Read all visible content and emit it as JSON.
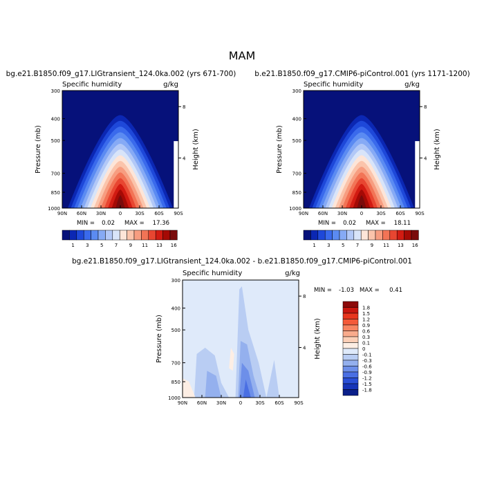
{
  "page_title": "MAM",
  "chart_data": [
    {
      "type": "heatmap",
      "title": "bg.e21.B1850.f09_g17.LIGtransient_124.0ka.002 (yrs 671-700)",
      "subtitle_left": "Specific humidity",
      "subtitle_right": "g/kg",
      "xlabel": "",
      "ylabel": "Pressure (mb)",
      "ylabel_right": "Height (km)",
      "x_ticks": [
        "90N",
        "60N",
        "30N",
        "0",
        "30S",
        "60S",
        "90S"
      ],
      "x_tick_values": [
        90,
        60,
        30,
        0,
        -30,
        -60,
        -90
      ],
      "y_ticks": [
        "300",
        "400",
        "500",
        "700",
        "850",
        "1000"
      ],
      "y_tick_values": [
        300,
        400,
        500,
        700,
        850,
        1000
      ],
      "y_log_scale": true,
      "y_right_ticks": [
        "8",
        "4"
      ],
      "y_right_tick_values": [
        8,
        4
      ],
      "min_label": "MIN =",
      "min_value": "0.02",
      "max_label": "MAX =",
      "max_value": "17.36",
      "peak_value": 17.36,
      "colorbar": {
        "orientation": "horizontal",
        "labels": [
          "1",
          "3",
          "5",
          "7",
          "9",
          "11",
          "13",
          "16"
        ],
        "colors": [
          "#06117a",
          "#0b27b3",
          "#1e48d9",
          "#3a6aec",
          "#5b8bf2",
          "#86aaf5",
          "#b2c8f7",
          "#d8e4f9",
          "#fde5d8",
          "#fbc4ab",
          "#f79d80",
          "#f27456",
          "#e84631",
          "#d21b12",
          "#a50a05",
          "#7a0b0b"
        ]
      }
    },
    {
      "type": "heatmap",
      "title": "b.e21.B1850.f09_g17.CMIP6-piControl.001 (yrs 1171-1200)",
      "subtitle_left": "Specific humidity",
      "subtitle_right": "g/kg",
      "xlabel": "",
      "ylabel": "Pressure (mb)",
      "ylabel_right": "Height (km)",
      "x_ticks": [
        "90N",
        "60N",
        "30N",
        "0",
        "30S",
        "60S",
        "90S"
      ],
      "x_tick_values": [
        90,
        60,
        30,
        0,
        -30,
        -60,
        -90
      ],
      "y_ticks": [
        "300",
        "400",
        "500",
        "700",
        "850",
        "1000"
      ],
      "y_tick_values": [
        300,
        400,
        500,
        700,
        850,
        1000
      ],
      "y_log_scale": true,
      "y_right_ticks": [
        "8",
        "4"
      ],
      "y_right_tick_values": [
        8,
        4
      ],
      "min_label": "MIN =",
      "min_value": "0.02",
      "max_label": "MAX =",
      "max_value": "18.11",
      "peak_value": 18.11,
      "colorbar": {
        "orientation": "horizontal",
        "labels": [
          "1",
          "3",
          "5",
          "7",
          "9",
          "11",
          "13",
          "16"
        ],
        "colors": [
          "#06117a",
          "#0b27b3",
          "#1e48d9",
          "#3a6aec",
          "#5b8bf2",
          "#86aaf5",
          "#b2c8f7",
          "#d8e4f9",
          "#fde5d8",
          "#fbc4ab",
          "#f79d80",
          "#f27456",
          "#e84631",
          "#d21b12",
          "#a50a05",
          "#7a0b0b"
        ]
      }
    },
    {
      "type": "heatmap",
      "title": "bg.e21.B1850.f09_g17.LIGtransient_124.0ka.002 - b.e21.B1850.f09_g17.CMIP6-piControl.001",
      "subtitle_left": "Specific humidity",
      "subtitle_right": "g/kg",
      "xlabel": "",
      "ylabel": "Pressure (mb)",
      "ylabel_right": "Height (km)",
      "x_ticks": [
        "90N",
        "60N",
        "30N",
        "0",
        "30S",
        "60S",
        "90S"
      ],
      "x_tick_values": [
        90,
        60,
        30,
        0,
        -30,
        -60,
        -90
      ],
      "y_ticks": [
        "300",
        "400",
        "500",
        "700",
        "850",
        "1000"
      ],
      "y_tick_values": [
        300,
        400,
        500,
        700,
        850,
        1000
      ],
      "y_log_scale": true,
      "y_right_ticks": [
        "8",
        "4"
      ],
      "y_right_tick_values": [
        8,
        4
      ],
      "min_label": "MIN =",
      "min_value": "-1.03",
      "max_label": "MAX =",
      "max_value": "0.41",
      "colorbar": {
        "orientation": "vertical",
        "labels": [
          "1.8",
          "1.5",
          "1.2",
          "0.9",
          "0.6",
          "0.3",
          "0.1",
          "0",
          "-0.1",
          "-0.3",
          "-0.6",
          "-0.9",
          "-1.2",
          "-1.5",
          "-1.8"
        ],
        "colors": [
          "#8c0a0a",
          "#c8170f",
          "#e8361e",
          "#f45a39",
          "#f78562",
          "#f9ab8c",
          "#fbcfb7",
          "#fdeee4",
          "#dfeafa",
          "#b9cdf3",
          "#94b0ee",
          "#6d8fe9",
          "#4a6fe3",
          "#2a4fd6",
          "#1634b8",
          "#0a1f8a"
        ]
      }
    }
  ]
}
